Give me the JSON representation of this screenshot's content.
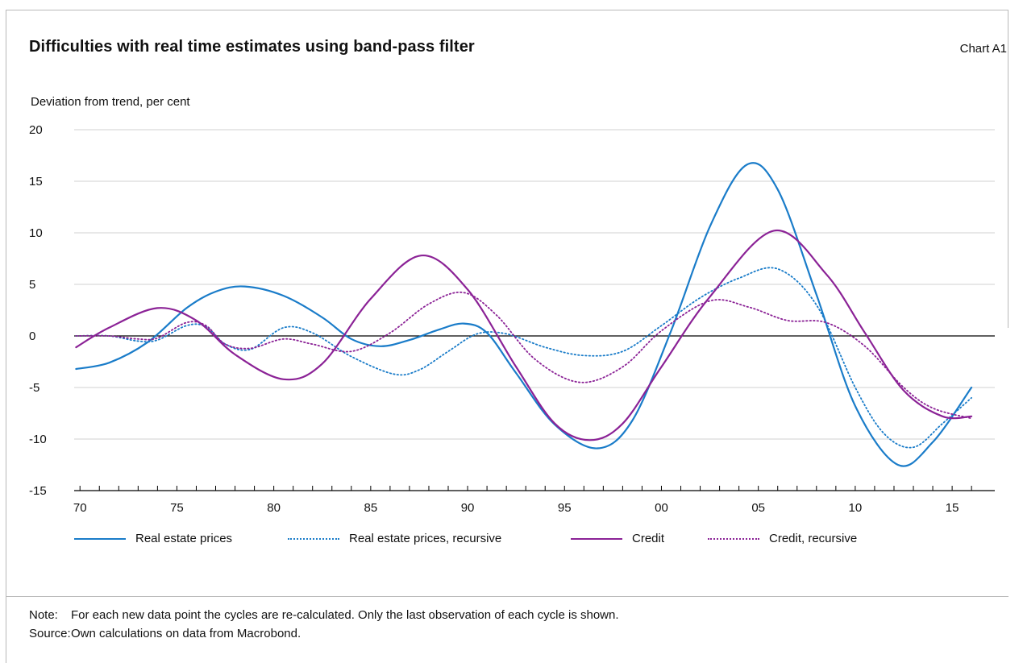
{
  "header": {
    "title": "Difficulties with real time estimates using band-pass filter",
    "chart_id": "Chart A1"
  },
  "footer": {
    "note_label": "Note:",
    "note_text": "For each new data point the cycles are re-calculated. Only the last observation of each cycle is shown.",
    "source_label": "Source:",
    "source_text": "Own calculations on data from Macrobond."
  },
  "colors": {
    "blue": "#1a7cc9",
    "purple": "#8b2296",
    "grid": "#d0d0d0",
    "axis": "#000000"
  },
  "chart_data": {
    "type": "line",
    "title": "Difficulties with real time estimates using band-pass filter",
    "ylabel": "Deviation from trend, per cent",
    "xlabel": "",
    "ylim": [
      -15,
      20
    ],
    "yticks": [
      "20",
      "15",
      "10",
      "5",
      "0",
      "-5",
      "-10",
      "-15"
    ],
    "xlim": [
      1969.7,
      2017.2
    ],
    "xticks": [
      {
        "x": 1970,
        "label": "70"
      },
      {
        "x": 1975,
        "label": "75"
      },
      {
        "x": 1980,
        "label": "80"
      },
      {
        "x": 1985,
        "label": "85"
      },
      {
        "x": 1990,
        "label": "90"
      },
      {
        "x": 1995,
        "label": "95"
      },
      {
        "x": 2000,
        "label": "00"
      },
      {
        "x": 2005,
        "label": "05"
      },
      {
        "x": 2010,
        "label": "10"
      },
      {
        "x": 2015,
        "label": "15"
      }
    ],
    "grid": true,
    "legend_position": "bottom",
    "series": [
      {
        "name": "Real estate prices",
        "style": "solid",
        "color": "#1a7cc9",
        "x": [
          1969.8,
          1971.5,
          1973.5,
          1975.5,
          1977.0,
          1978.5,
          1980.5,
          1982.5,
          1984.0,
          1985.5,
          1987.0,
          1988.5,
          1989.8,
          1991.0,
          1992.5,
          1994.5,
          1996.7,
          1998.5,
          2000.5,
          2002.5,
          2004.4,
          2006.0,
          2008.0,
          2010.0,
          2012.2,
          2014.0,
          2016.0
        ],
        "y": [
          -3.2,
          -2.6,
          -0.6,
          2.7,
          4.3,
          4.8,
          3.9,
          1.8,
          -0.3,
          -1.0,
          -0.4,
          0.6,
          1.2,
          0.3,
          -3.6,
          -8.6,
          -10.9,
          -8.2,
          0.5,
          10.6,
          16.6,
          14.2,
          4.0,
          -6.8,
          -12.5,
          -10.3,
          -5.0
        ]
      },
      {
        "name": "Real estate prices, recursive",
        "style": "dotted",
        "color": "#1a7cc9",
        "x": [
          1969.8,
          1971.5,
          1973.0,
          1974.0,
          1975.5,
          1976.5,
          1977.5,
          1978.8,
          1980.5,
          1982.0,
          1984.0,
          1986.2,
          1987.5,
          1989.0,
          1990.5,
          1992.0,
          1994.0,
          1996.0,
          1998.0,
          2000.0,
          2002.0,
          2004.0,
          2006.0,
          2008.0,
          2010.0,
          2011.5,
          2013.0,
          2014.5,
          2016.0
        ],
        "y": [
          0,
          0,
          -0.5,
          -0.4,
          1.0,
          0.9,
          -0.8,
          -1.3,
          0.8,
          0.3,
          -2.0,
          -3.7,
          -3.3,
          -1.5,
          0.2,
          0.2,
          -1.1,
          -1.9,
          -1.5,
          1.0,
          3.7,
          5.6,
          6.5,
          3.0,
          -5.0,
          -9.5,
          -10.8,
          -8.5,
          -6.0
        ]
      },
      {
        "name": "Credit",
        "style": "solid",
        "color": "#8b2296",
        "x": [
          1969.8,
          1971.5,
          1974.0,
          1976.0,
          1978.0,
          1980.5,
          1982.5,
          1985.0,
          1987.6,
          1990.0,
          1992.5,
          1994.5,
          1996.3,
          1998.0,
          2000.0,
          2002.5,
          2005.8,
          2008.5,
          2010.5,
          2012.5,
          2014.5,
          2016.0
        ],
        "y": [
          -1.1,
          0.8,
          2.7,
          1.5,
          -1.8,
          -4.2,
          -2.7,
          3.6,
          7.8,
          4.5,
          -3.0,
          -8.5,
          -10.1,
          -8.5,
          -3.0,
          3.8,
          10.2,
          6.0,
          0.3,
          -5.3,
          -7.8,
          -7.8
        ]
      },
      {
        "name": "Credit, recursive",
        "style": "dotted",
        "color": "#8b2296",
        "x": [
          1969.8,
          1971.5,
          1973.0,
          1974.0,
          1975.5,
          1976.5,
          1977.5,
          1978.8,
          1980.5,
          1982.0,
          1984.0,
          1986.0,
          1988.0,
          1989.8,
          1991.5,
          1993.5,
          1995.8,
          1998.0,
          2000.0,
          2002.5,
          2004.5,
          2006.5,
          2008.5,
          2010.5,
          2012.5,
          2014.0,
          2016.0
        ],
        "y": [
          0,
          0,
          -0.3,
          -0.2,
          1.3,
          1.0,
          -0.8,
          -1.2,
          -0.3,
          -0.8,
          -1.5,
          0.3,
          3.1,
          4.2,
          2.0,
          -2.3,
          -4.5,
          -3.0,
          0.5,
          3.4,
          2.8,
          1.5,
          1.3,
          -1.0,
          -5.0,
          -7.0,
          -8.0
        ]
      }
    ]
  }
}
